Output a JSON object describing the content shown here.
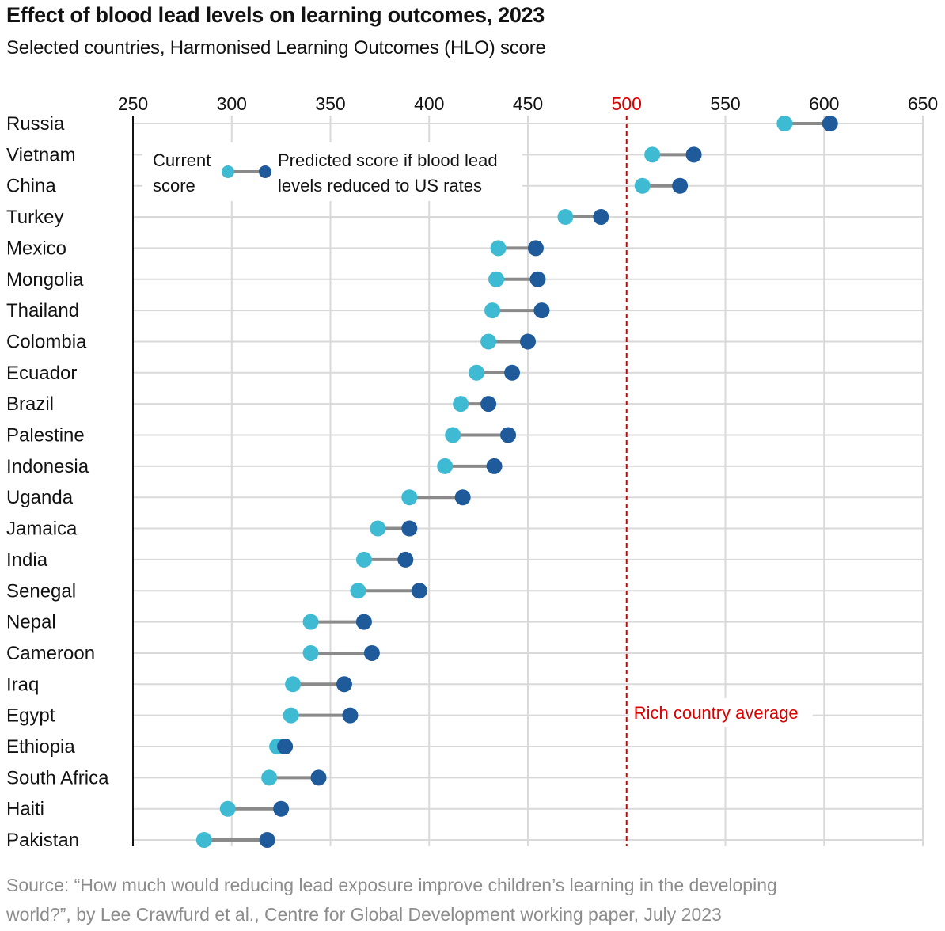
{
  "title": "Effect of blood lead levels on learning outcomes, 2023",
  "subtitle": "Selected countries, Harmonised Learning Outcomes (HLO) score",
  "source_line1": "Source: “How much would reducing lead exposure improve children’s learning in the developing",
  "source_line2": "world?”, by Lee Crawfurd et al., Centre for Global Development working paper, July 2023",
  "colors": {
    "current": "#3ebbd3",
    "predicted": "#1f5a9b",
    "connector": "#8a8a8a",
    "grid": "#d9d9d9",
    "reference": "#db0000",
    "axis": "#121212"
  },
  "chart_data": {
    "type": "dumbbell",
    "title": "Effect of blood lead levels on learning outcomes, 2023",
    "subtitle": "Selected countries, Harmonised Learning Outcomes (HLO) score",
    "xlim": [
      250,
      650
    ],
    "xticks": [
      250,
      300,
      350,
      400,
      450,
      500,
      550,
      600,
      650
    ],
    "axis_position": "top",
    "grid": true,
    "legend": {
      "placement": "top-left",
      "current_label_line1": "Current",
      "current_label_line2": "score",
      "predicted_label_line1": "Predicted score if blood lead",
      "predicted_label_line2": "levels reduced to US rates"
    },
    "reference_line": {
      "value": 500,
      "label": "Rich country average"
    },
    "series": [
      {
        "name": "Current score",
        "key": "current"
      },
      {
        "name": "Predicted score if blood lead levels reduced to US rates",
        "key": "predicted"
      }
    ],
    "categories": [
      "Russia",
      "Vietnam",
      "China",
      "Turkey",
      "Mexico",
      "Mongolia",
      "Thailand",
      "Colombia",
      "Ecuador",
      "Brazil",
      "Palestine",
      "Indonesia",
      "Uganda",
      "Jamaica",
      "India",
      "Senegal",
      "Nepal",
      "Cameroon",
      "Iraq",
      "Egypt",
      "Ethiopia",
      "South Africa",
      "Haiti",
      "Pakistan"
    ],
    "current": [
      580,
      513,
      508,
      469,
      435,
      434,
      432,
      430,
      424,
      416,
      412,
      408,
      390,
      374,
      367,
      364,
      340,
      340,
      331,
      330,
      323,
      319,
      298,
      286
    ],
    "predicted": [
      603,
      534,
      527,
      487,
      454,
      455,
      457,
      450,
      442,
      430,
      440,
      433,
      417,
      390,
      388,
      395,
      367,
      371,
      357,
      360,
      327,
      344,
      325,
      318
    ]
  }
}
